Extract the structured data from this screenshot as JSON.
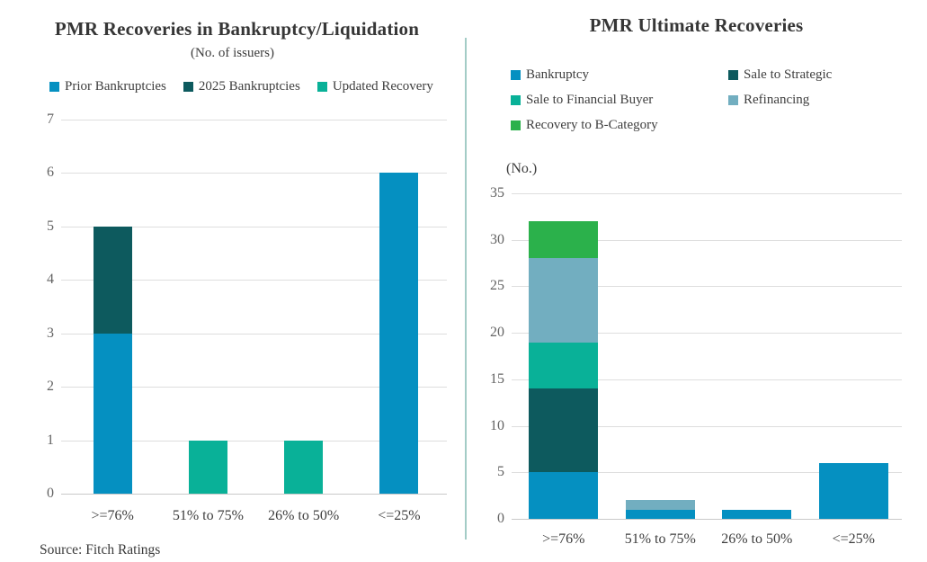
{
  "source_note": "Source: Fitch Ratings",
  "colors": {
    "bankruptcy_blue": "#0590c1",
    "dark_teal": "#0d5a5e",
    "teal": "#09b198",
    "refinancing_blue_gray": "#72aec0",
    "recovery_green": "#2bb14b",
    "divider": "#a3ccc6",
    "gridline": "#dedede"
  },
  "chart_data": [
    {
      "type": "bar",
      "stacked": true,
      "title": "PMR Recoveries in Bankruptcy/Liquidation",
      "subtitle": "(No. of issuers)",
      "categories": [
        ">=76%",
        "51% to 75%",
        "26% to 50%",
        "<=25%"
      ],
      "series": [
        {
          "name": "Prior Bankruptcies",
          "color": "#0590c1",
          "values": [
            3,
            0,
            0,
            6
          ]
        },
        {
          "name": "2025 Bankruptcies",
          "color": "#0d5a5e",
          "values": [
            2,
            0,
            0,
            0
          ]
        },
        {
          "name": "Updated Recovery",
          "color": "#09b198",
          "values": [
            0,
            1,
            1,
            0
          ]
        }
      ],
      "ylim": [
        0,
        7
      ],
      "ytick_step": 1,
      "grid": true,
      "legend_position": "top-row"
    },
    {
      "type": "bar",
      "stacked": true,
      "title": "PMR Ultimate Recoveries",
      "ylabel": "(No.)",
      "categories": [
        ">=76%",
        "51% to 75%",
        "26% to 50%",
        "<=25%"
      ],
      "series": [
        {
          "name": "Bankruptcy",
          "color": "#0590c1",
          "values": [
            5,
            1,
            1,
            6
          ]
        },
        {
          "name": "Sale to Strategic",
          "color": "#0d5a5e",
          "values": [
            9,
            0,
            0,
            0
          ]
        },
        {
          "name": "Sale to Financial Buyer",
          "color": "#09b198",
          "values": [
            5,
            0,
            0,
            0
          ]
        },
        {
          "name": "Refinancing",
          "color": "#72aec0",
          "values": [
            9,
            1,
            0,
            0
          ]
        },
        {
          "name": "Recovery to B-Category",
          "color": "#2bb14b",
          "values": [
            4,
            0,
            0,
            0
          ]
        }
      ],
      "ylim": [
        0,
        35
      ],
      "ytick_step": 5,
      "grid": true,
      "legend_position": "top-two-column"
    }
  ]
}
